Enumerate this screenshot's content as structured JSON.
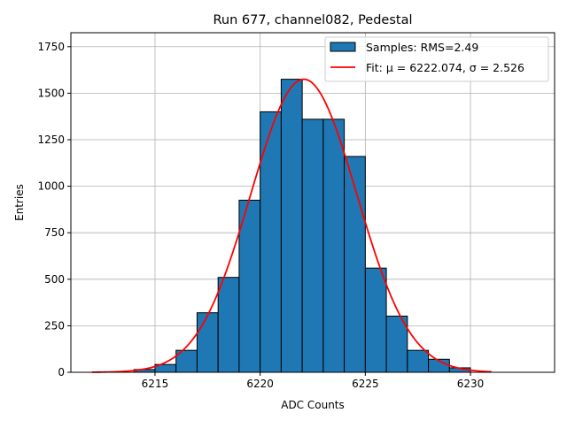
{
  "chart_data": {
    "type": "bar",
    "title": "Run 677, channel082, Pedestal",
    "xlabel": "ADC Counts",
    "ylabel": "Entries",
    "xlim": [
      6211.0,
      6234.0
    ],
    "ylim": [
      0,
      1825
    ],
    "xticks": [
      6215,
      6220,
      6225,
      6230
    ],
    "yticks": [
      0,
      250,
      500,
      750,
      1000,
      1250,
      1500,
      1750
    ],
    "grid": true,
    "legend_position": "top-right",
    "bin_edges": [
      6214,
      6215,
      6216,
      6217,
      6218,
      6219,
      6220,
      6221,
      6222,
      6223,
      6224,
      6225,
      6226,
      6227,
      6228,
      6229,
      6230
    ],
    "values": [
      15,
      42,
      118,
      320,
      510,
      925,
      1400,
      1575,
      1360,
      1360,
      1160,
      560,
      302,
      118,
      70,
      24
    ],
    "bar_color": "#1f77b4",
    "fit": {
      "mu": 6222.074,
      "sigma": 2.526,
      "amplitude": 1575,
      "x_range": [
        6212,
        6231
      ],
      "color": "#ff0000"
    },
    "legend": [
      "Samples: RMS=2.49",
      "Fit: μ = 6222.074, σ = 2.526"
    ]
  }
}
